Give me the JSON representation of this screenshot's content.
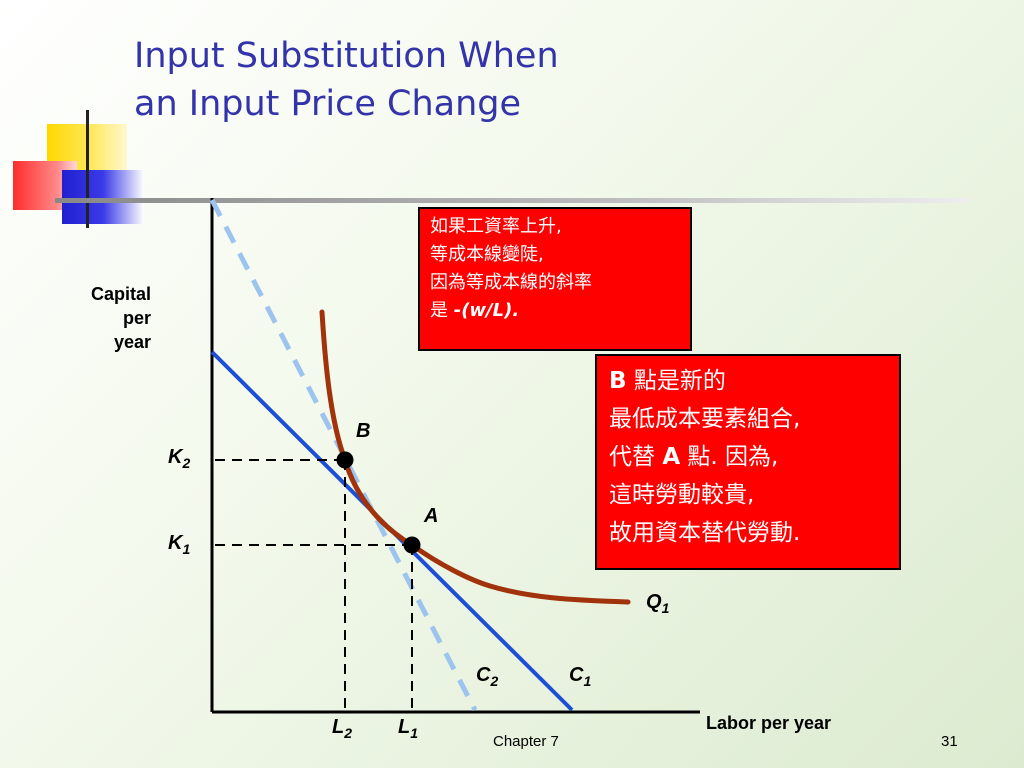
{
  "title": {
    "line1": "Input Substitution When",
    "line2": "an Input Price Change"
  },
  "axes": {
    "y_label_lines": [
      "Capital",
      "per",
      "year"
    ],
    "x_label": "Labor per year"
  },
  "points": {
    "B": "B",
    "A": "A"
  },
  "labels": {
    "K2": "K",
    "K2_sub": "2",
    "K1": "K",
    "K1_sub": "1",
    "L2": "L",
    "L2_sub": "2",
    "L1": "L",
    "L1_sub": "1",
    "Q1": "Q",
    "Q1_sub": "1",
    "C2": "C",
    "C2_sub": "2",
    "C1": "C",
    "C1_sub": "1"
  },
  "box1": {
    "lines": [
      "如果工資率上升,",
      "等成本線變陡,",
      "因為等成本線的斜率"
    ],
    "line4_prefix": "是 ",
    "line4_math": "-(w/L)."
  },
  "box2": {
    "line1_bold": "B",
    "line1_rest": " 點是新的",
    "line2": "最低成本要素組合,",
    "line3_pre": "代替 ",
    "line3_bold": "A",
    "line3_post": " 點. 因為,",
    "line4": "這時勞動較貴,",
    "line5": "故用資本替代勞動."
  },
  "footer": {
    "chapter": "Chapter 7",
    "page": "31"
  },
  "colors": {
    "title": "#3333aa",
    "isocost_C2": "#1d4fd6",
    "isocost_C1_dashed": "#9cc4ee",
    "isoquant": "#a0320c",
    "box_fill": "#ff0000"
  }
}
